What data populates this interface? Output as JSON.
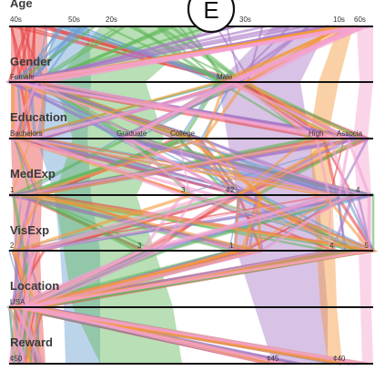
{
  "badge": "E",
  "colors": {
    "40s": "#e8474a",
    "50s": "#6a9fd0",
    "20s": "#62b85c",
    "30s": "#a878c6",
    "10s": "#f59a3a",
    "60s": "#f3a2d0"
  },
  "chart_data": {
    "type": "parallel-sets",
    "dimensions": [
      {
        "name": "Age",
        "categories": [
          "40s",
          "50s",
          "20s",
          "30s",
          "10s",
          "60s"
        ]
      },
      {
        "name": "Gender",
        "categories": [
          "Female",
          "Male"
        ]
      },
      {
        "name": "Education",
        "categories": [
          "Bachelors",
          "Graduate",
          "College",
          "High",
          "Associa"
        ]
      },
      {
        "name": "MedExp",
        "categories": [
          "1",
          "3",
          "4",
          "2",
          "",
          "4"
        ]
      },
      {
        "name": "VisExp",
        "categories": [
          "2",
          "3",
          "1",
          "4",
          "5"
        ]
      },
      {
        "name": "Location",
        "categories": [
          "USA"
        ]
      },
      {
        "name": "Reward",
        "categories": [
          "¢50",
          "¢45",
          "¢40"
        ]
      }
    ],
    "color_by": "Age"
  }
}
